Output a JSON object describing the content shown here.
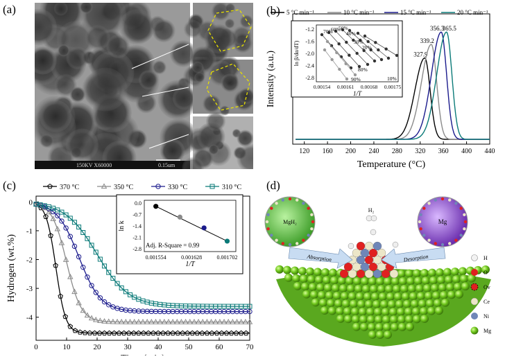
{
  "panel_labels": {
    "a": "(a)",
    "b": "(b)",
    "c": "(c)",
    "d": "(d)"
  },
  "tem": {
    "footer_left": "150KV  X60000",
    "scale_bar": "0.15um"
  },
  "chart_data": [
    {
      "type": "line",
      "panel": "b",
      "xlabel": "Temperature (°C)",
      "ylabel": "Intensity (a.u.)",
      "xlim": [
        100,
        440
      ],
      "xticks": [
        120,
        160,
        200,
        240,
        280,
        320,
        360,
        400,
        440
      ],
      "legend_position": "top",
      "series": [
        {
          "name": "5 °C min⁻¹",
          "color": "#000000",
          "peak_x": 327.9,
          "peak_y": 0.66,
          "w_left": 24,
          "w_right": 13
        },
        {
          "name": "10 °C min⁻¹",
          "color": "#8a8a8a",
          "peak_x": 339.2,
          "peak_y": 0.77,
          "w_left": 24,
          "w_right": 13
        },
        {
          "name": "15 °C min⁻¹",
          "color": "#1a1a8c",
          "peak_x": 356.3,
          "peak_y": 0.87,
          "w_left": 24,
          "w_right": 13
        },
        {
          "name": "20 °C min⁻¹",
          "color": "#0a7a78",
          "peak_x": 365.5,
          "peak_y": 0.87,
          "w_left": 24,
          "w_right": 13
        }
      ],
      "peak_labels": [
        "327.9",
        "339.2",
        "356.3",
        "365.5"
      ],
      "inset": {
        "xlabel": "1/T",
        "ylabel": "ln β/dα/dT)",
        "xticks": [
          "0.00154",
          "0.00161",
          "0.00168",
          "0.00175"
        ],
        "yticks": [
          "-1.2",
          "-1.6",
          "-2.0",
          "-2.4",
          "-2.8"
        ],
        "conversion_labels": [
          "70%",
          "60%",
          "50%",
          "40%",
          "30%",
          "20%",
          "10%",
          "80%",
          "90%"
        ]
      }
    },
    {
      "type": "line",
      "panel": "c",
      "xlabel": "Time (min)",
      "ylabel": "Hydrogen (wt.%)",
      "xlim": [
        0,
        70
      ],
      "ylim": [
        -4.8,
        0.2
      ],
      "xticks": [
        0,
        10,
        20,
        30,
        40,
        50,
        60,
        70
      ],
      "yticks": [
        0,
        -1,
        -2,
        -3,
        -4
      ],
      "legend_position": "top",
      "series": [
        {
          "name": "370 °C",
          "color": "#000000",
          "marker": "pentagon",
          "final": -4.55,
          "t_half": 6.5,
          "k": 1.6
        },
        {
          "name": "350 °C",
          "color": "#8a8a8a",
          "marker": "triangle",
          "final": -4.15,
          "t_half": 10.0,
          "k": 2.4
        },
        {
          "name": "330 °C",
          "color": "#1a1a8c",
          "marker": "circle",
          "final": -3.8,
          "t_half": 14.0,
          "k": 3.6
        },
        {
          "name": "310 °C",
          "color": "#0a7a78",
          "marker": "square",
          "final": -3.62,
          "t_half": 20.0,
          "k": 5.2
        }
      ],
      "inset": {
        "xlabel": "1/T",
        "ylabel": "ln k",
        "xticks": [
          "0.001554",
          "0.001628",
          "0.001702"
        ],
        "yticks": [
          "0.0",
          "-0.7",
          "-1.4",
          "-2.1",
          "-2.8"
        ],
        "points": [
          {
            "x": 0.001554,
            "y": -0.2,
            "color": "#000000"
          },
          {
            "x": 0.001604,
            "y": -0.86,
            "color": "#8a8a8a"
          },
          {
            "x": 0.001654,
            "y": -1.52,
            "color": "#1a1a8c"
          },
          {
            "x": 0.001702,
            "y": -2.33,
            "color": "#0a7a78"
          }
        ],
        "annotation": "Adj. R-Square = 0.99"
      }
    }
  ],
  "diagram": {
    "left_sphere": "MgH₂",
    "right_sphere": "Mg",
    "h2_label": "H₂",
    "arrow_left": "Absorption",
    "arrow_right": "Desorption",
    "legend": [
      {
        "label": "H",
        "color": "#f2f2f2"
      },
      {
        "label": "O",
        "color": "#e02020"
      },
      {
        "label": "Ov",
        "color": "#e02020"
      },
      {
        "label": "Ce",
        "color": "#ece6c8"
      },
      {
        "label": "Ni",
        "color": "#6f86b8"
      },
      {
        "label": "Mg",
        "color": "#7fcf2a"
      }
    ]
  }
}
